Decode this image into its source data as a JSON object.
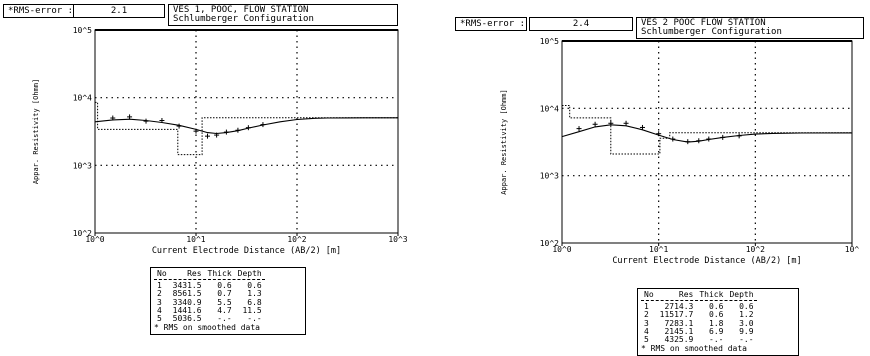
{
  "chart_data": [
    {
      "type": "line",
      "rms_label": "*RMS-error :",
      "rms_value": "2.1",
      "title": "VES 1, POOC, FLOW STATION",
      "subtitle": "Schlumberger Configuration",
      "xlabel": "Current Electrode Distance (AB/2) [m]",
      "ylabel": "Appar. Resistivity [Ohmm]",
      "x_scale": "log",
      "y_scale": "log",
      "xlim": [
        1,
        1000
      ],
      "ylim": [
        100,
        100000
      ],
      "x_ticks": [
        "10^0",
        "10^1",
        "10^2",
        "10^3"
      ],
      "y_ticks": [
        "10^2",
        "10^3",
        "10^4",
        "10^5"
      ],
      "grid": true,
      "series": [
        {
          "name": "",
          "kind": "observed",
          "x": [
            1.5,
            2.2,
            3.2,
            4.6,
            6.8,
            10,
            13,
            16,
            20,
            26,
            33,
            46
          ],
          "y": [
            5000,
            5200,
            4500,
            4600,
            3800,
            3200,
            2700,
            2800,
            3100,
            3300,
            3600,
            4000
          ]
        },
        {
          "name": "",
          "kind": "calculated",
          "x": [
            1,
            1.5,
            2.2,
            3.2,
            4.6,
            6.8,
            10,
            13,
            16,
            20,
            26,
            33,
            46,
            68,
            100,
            150,
            200,
            300,
            460,
            1000
          ],
          "y": [
            4400,
            4700,
            4800,
            4600,
            4300,
            3900,
            3400,
            3050,
            2950,
            3050,
            3250,
            3550,
            3950,
            4400,
            4750,
            4950,
            5000,
            5030,
            5040,
            5040
          ]
        },
        {
          "name": "",
          "kind": "model",
          "x": [
            1,
            1.06,
            1.06,
            1.6,
            1.6,
            6.6,
            6.6,
            11.5,
            11.5,
            1000
          ],
          "y": [
            8500,
            8500,
            3400,
            3400,
            3400,
            3400,
            1440,
            1440,
            5040,
            5040
          ]
        }
      ],
      "table": {
        "headers": [
          "No",
          "Res",
          "Thick",
          "Depth"
        ],
        "rows": [
          [
            "1",
            "3431.5",
            "0.6",
            "0.6"
          ],
          [
            "2",
            "8561.5",
            "0.7",
            "1.3"
          ],
          [
            "3",
            "3340.9",
            "5.5",
            "6.8"
          ],
          [
            "4",
            "1441.6",
            "4.7",
            "11.5"
          ],
          [
            "5",
            "5036.5",
            "-.-",
            "-.-"
          ]
        ],
        "note": "* RMS on smoothed data"
      }
    },
    {
      "type": "line",
      "rms_label": "*RMS-error :",
      "rms_value": "2.4",
      "title": "VES 2 POOC FLOW STATION",
      "subtitle": "Schlumberger Configuration",
      "xlabel": "Current Electrode Distance (AB/2) [m]",
      "ylabel": "Appar. Resistivity [Ohmm]",
      "x_scale": "log",
      "y_scale": "log",
      "xlim": [
        1,
        1000
      ],
      "ylim": [
        100,
        100000
      ],
      "x_ticks": [
        "10^0",
        "10^1",
        "10^2",
        "10^"
      ],
      "y_ticks": [
        "10^2",
        "10^3",
        "10^4",
        "10^5"
      ],
      "grid": true,
      "series": [
        {
          "name": "",
          "kind": "observed",
          "x": [
            1.5,
            2.2,
            3.2,
            4.6,
            6.8,
            10,
            14,
            20,
            26,
            33,
            46,
            68
          ],
          "y": [
            5000,
            5800,
            6000,
            6000,
            5200,
            4200,
            3500,
            3200,
            3300,
            3500,
            3700,
            3900
          ]
        },
        {
          "name": "",
          "kind": "calculated",
          "x": [
            1,
            1.5,
            2.2,
            3.2,
            4.6,
            6.8,
            10,
            14,
            20,
            26,
            33,
            46,
            68,
            100,
            150,
            300,
            1000
          ],
          "y": [
            3800,
            4500,
            5300,
            5700,
            5500,
            4800,
            4000,
            3450,
            3150,
            3250,
            3450,
            3700,
            3950,
            4150,
            4250,
            4300,
            4310
          ]
        },
        {
          "name": "",
          "kind": "model",
          "x": [
            1,
            1.2,
            1.2,
            3.2,
            3.2,
            10.3,
            10.3,
            13,
            13,
            1000
          ],
          "y": [
            11000,
            11000,
            7200,
            7200,
            2100,
            2100,
            3600,
            3600,
            4326,
            4326
          ]
        }
      ],
      "table": {
        "headers": [
          "No",
          "Res",
          "Thick",
          "Depth"
        ],
        "rows": [
          [
            "1",
            "2714.3",
            "0.6",
            "0.6"
          ],
          [
            "2",
            "11517.7",
            "0.6",
            "1.2"
          ],
          [
            "3",
            "7283.1",
            "1.8",
            "3.0"
          ],
          [
            "4",
            "2145.1",
            "6.9",
            "9.9"
          ],
          [
            "5",
            "4325.9",
            "-.-",
            "-.-"
          ]
        ],
        "note": "* RMS on smoothed data"
      }
    }
  ]
}
